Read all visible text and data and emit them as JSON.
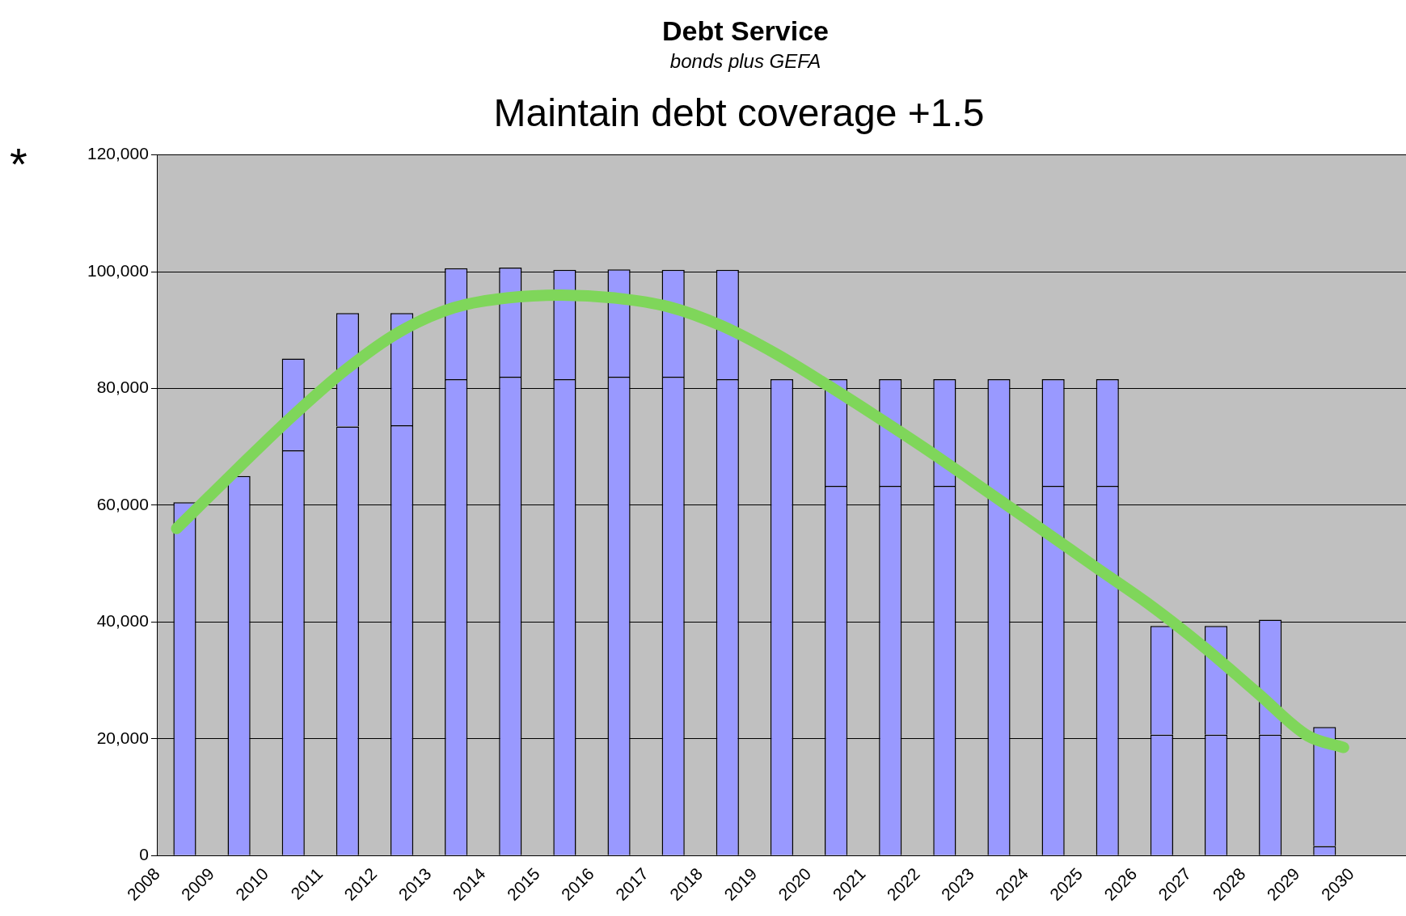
{
  "chart_data": {
    "type": "bar",
    "title": "Debt Service",
    "subtitle": "bonds plus GEFA",
    "annotations": [
      "Maintain debt coverage +1.5",
      "*"
    ],
    "x": [
      2008.5,
      2009.5,
      2010.5,
      2011.5,
      2012.5,
      2013.5,
      2014.5,
      2015.5,
      2016.5,
      2017.5,
      2018.5,
      2019.5,
      2020.5,
      2021.5,
      2022.5,
      2023.5,
      2024.5,
      2025.5,
      2026.5,
      2027.5,
      2028.5,
      2029.5
    ],
    "stacked": true,
    "series": [
      {
        "color": "#9999ff",
        "values": [
          60500,
          65000,
          69400,
          73500,
          73700,
          81600,
          82000,
          81600,
          82000,
          82000,
          81600,
          81600,
          63300,
          63300,
          63300,
          81600,
          63300,
          63300,
          20700,
          20700,
          20700,
          1600
        ]
      },
      {
        "color": "#9999ff",
        "values": [
          null,
          null,
          15700,
          19400,
          19200,
          19000,
          18700,
          18700,
          18400,
          18300,
          18700,
          null,
          18300,
          18300,
          18300,
          null,
          18300,
          18300,
          18600,
          18600,
          19700,
          20400
        ]
      },
      {
        "type": "line",
        "color": "#7fd65a",
        "x": [
          2008.35,
          2009.5,
          2010.49,
          2011.48,
          2012.46,
          2013.45,
          2014.44,
          2015.43,
          2016.42,
          2017.41,
          2018.4,
          2019.38,
          2020.37,
          2021.36,
          2022.35,
          2023.34,
          2024.33,
          2025.31,
          2026.3,
          2027.29,
          2028.28,
          2029.19,
          2029.85
        ],
        "values": [
          56000,
          66500,
          75300,
          83300,
          89700,
          93800,
          95500,
          96000,
          95500,
          94000,
          90700,
          86000,
          80400,
          74500,
          68400,
          62000,
          55600,
          49200,
          42800,
          35600,
          27700,
          20500,
          18500
        ]
      }
    ],
    "xlim": [
      2008,
      2031
    ],
    "xticks": [
      2008,
      2009,
      2010,
      2011,
      2012,
      2013,
      2014,
      2015,
      2016,
      2017,
      2018,
      2019,
      2020,
      2021,
      2022,
      2023,
      2024,
      2025,
      2026,
      2027,
      2028,
      2029,
      2030
    ],
    "ylim": [
      0,
      120000
    ],
    "yticks": [
      0,
      {
        "value": 20000,
        "label": "20,000"
      },
      {
        "value": 40000,
        "label": "40,000"
      },
      {
        "value": 60000,
        "label": "60,000"
      },
      {
        "value": 80000,
        "label": "80,000"
      },
      {
        "value": 100000,
        "label": "100,000"
      },
      {
        "value": 120000,
        "label": "120,000"
      }
    ],
    "grid": "y",
    "legend": false
  }
}
